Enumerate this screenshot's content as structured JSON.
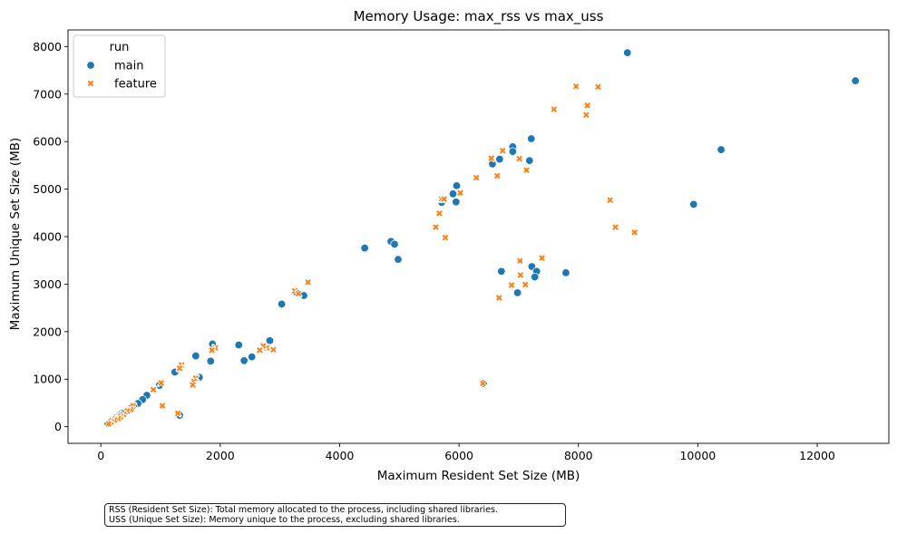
{
  "chart_data": {
    "type": "scatter",
    "title": "Memory Usage: max_rss vs max_uss",
    "xlabel": "Maximum Resident Set Size (MB)",
    "ylabel": "Maximum Unique Set Size (MB)",
    "xlim": [
      -550,
      13200
    ],
    "ylim": [
      -350,
      8350
    ],
    "xticks": [
      0,
      2000,
      4000,
      6000,
      8000,
      10000,
      12000
    ],
    "yticks": [
      0,
      1000,
      2000,
      3000,
      4000,
      5000,
      6000,
      7000,
      8000
    ],
    "grid": false,
    "legend": {
      "title": "run",
      "placement": "top-left"
    },
    "series": [
      {
        "name": "main",
        "color": "#1f77b4",
        "marker": "circle",
        "points": [
          [
            8820,
            7870
          ],
          [
            12640,
            7280
          ],
          [
            10390,
            5830
          ],
          [
            9930,
            4680
          ],
          [
            7210,
            6060
          ],
          [
            6900,
            5890
          ],
          [
            6900,
            5790
          ],
          [
            6680,
            5630
          ],
          [
            7180,
            5600
          ],
          [
            6560,
            5530
          ],
          [
            5960,
            5070
          ],
          [
            5900,
            4900
          ],
          [
            5950,
            4730
          ],
          [
            5710,
            4720
          ],
          [
            4420,
            3760
          ],
          [
            4860,
            3900
          ],
          [
            4920,
            3840
          ],
          [
            4980,
            3520
          ],
          [
            6710,
            3270
          ],
          [
            7220,
            3370
          ],
          [
            7300,
            3270
          ],
          [
            7270,
            3150
          ],
          [
            7790,
            3240
          ],
          [
            6980,
            2820
          ],
          [
            3030,
            2580
          ],
          [
            3280,
            2820
          ],
          [
            3400,
            2760
          ],
          [
            2830,
            1810
          ],
          [
            2310,
            1720
          ],
          [
            2530,
            1470
          ],
          [
            2400,
            1390
          ],
          [
            1870,
            1740
          ],
          [
            1840,
            1380
          ],
          [
            1590,
            1490
          ],
          [
            1650,
            1040
          ],
          [
            1240,
            1150
          ],
          [
            980,
            870
          ],
          [
            770,
            660
          ],
          [
            700,
            570
          ],
          [
            620,
            490
          ],
          [
            1300,
            250
          ],
          [
            1320,
            240
          ],
          [
            6410,
            910
          ],
          [
            550,
            420
          ],
          [
            480,
            380
          ],
          [
            420,
            330
          ],
          [
            350,
            280
          ],
          [
            300,
            230
          ],
          [
            260,
            190
          ],
          [
            200,
            150
          ],
          [
            160,
            110
          ],
          [
            120,
            70
          ]
        ]
      },
      {
        "name": "feature",
        "color": "#ff7f0e",
        "marker": "x",
        "points": [
          [
            7960,
            7160
          ],
          [
            8330,
            7150
          ],
          [
            8150,
            6760
          ],
          [
            8130,
            6560
          ],
          [
            7590,
            6680
          ],
          [
            6730,
            5810
          ],
          [
            6540,
            5650
          ],
          [
            7010,
            5640
          ],
          [
            7130,
            5400
          ],
          [
            6640,
            5280
          ],
          [
            6290,
            5240
          ],
          [
            6020,
            4920
          ],
          [
            5710,
            4790
          ],
          [
            5750,
            4790
          ],
          [
            5670,
            4490
          ],
          [
            5610,
            4200
          ],
          [
            5770,
            3980
          ],
          [
            8530,
            4770
          ],
          [
            8620,
            4200
          ],
          [
            8940,
            4090
          ],
          [
            7390,
            3550
          ],
          [
            7020,
            3490
          ],
          [
            7030,
            3190
          ],
          [
            6880,
            2980
          ],
          [
            7110,
            2990
          ],
          [
            6670,
            2710
          ],
          [
            3470,
            3040
          ],
          [
            3250,
            2860
          ],
          [
            3310,
            2800
          ],
          [
            2890,
            1620
          ],
          [
            2780,
            1660
          ],
          [
            2720,
            1700
          ],
          [
            2660,
            1610
          ],
          [
            1920,
            1660
          ],
          [
            1860,
            1610
          ],
          [
            1590,
            1020
          ],
          [
            1560,
            950
          ],
          [
            1540,
            880
          ],
          [
            1350,
            1300
          ],
          [
            1320,
            1230
          ],
          [
            1010,
            920
          ],
          [
            1030,
            440
          ],
          [
            880,
            780
          ],
          [
            1290,
            280
          ],
          [
            6400,
            910
          ],
          [
            540,
            440
          ],
          [
            500,
            360
          ],
          [
            440,
            330
          ],
          [
            380,
            260
          ],
          [
            330,
            210
          ],
          [
            290,
            170
          ],
          [
            230,
            140
          ],
          [
            170,
            100
          ],
          [
            130,
            60
          ]
        ]
      }
    ]
  },
  "footnote": {
    "lines": [
      "RSS (Resident Set Size): Total memory allocated to the process, including shared libraries.",
      "USS (Unique Set Size): Memory unique to the process, excluding shared libraries."
    ]
  }
}
